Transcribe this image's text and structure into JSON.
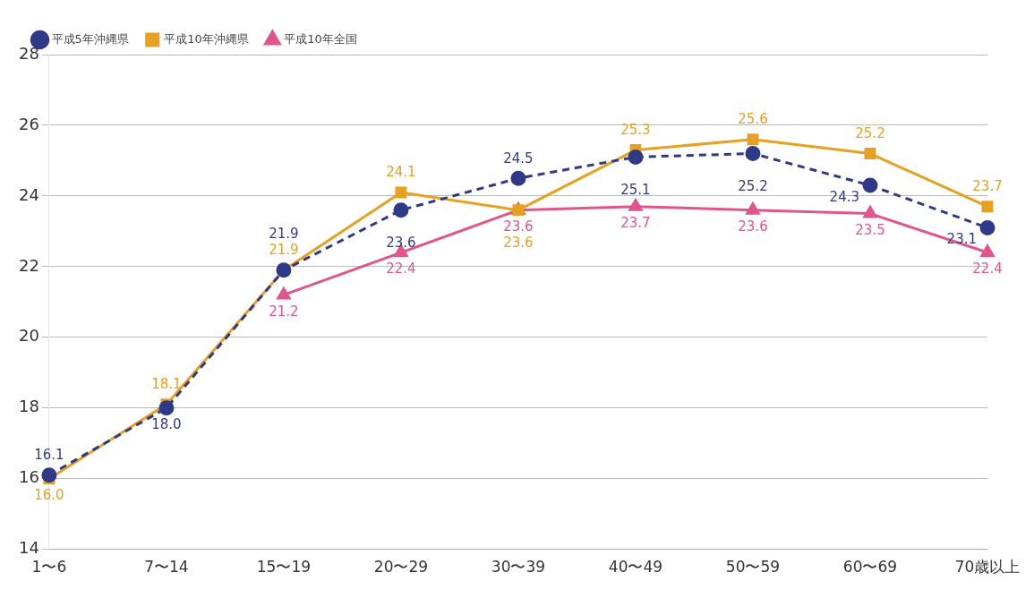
{
  "chart_data": {
    "type": "line",
    "categories": [
      "1〜6",
      "7〜14",
      "15〜19",
      "20〜29",
      "30〜39",
      "40〜49",
      "50〜59",
      "60〜69",
      "70歳以上"
    ],
    "series": [
      {
        "name": "平成5年沖縄県",
        "color": "#2e3a87",
        "marker": "circle",
        "line_style": "dashed",
        "values": [
          16.1,
          18.0,
          21.9,
          23.6,
          24.5,
          25.1,
          25.2,
          24.3,
          23.1
        ],
        "value_labels": [
          "16.1",
          "18.0",
          "21.9",
          "23.6",
          "24.5",
          "25.1",
          "25.2",
          "24.3",
          "23.1"
        ]
      },
      {
        "name": "平成10年沖縄県",
        "color": "#e8a020",
        "marker": "square",
        "line_style": "solid",
        "values": [
          16.0,
          18.1,
          21.9,
          24.1,
          23.6,
          25.3,
          25.6,
          25.2,
          23.7
        ],
        "value_labels": [
          "16.0",
          "18.1",
          "21.9",
          "24.1",
          "23.6",
          "25.3",
          "25.6",
          "25.2",
          "23.7"
        ]
      },
      {
        "name": "平成10年全国",
        "color": "#e0558a",
        "marker": "triangle",
        "line_style": "solid",
        "values": [
          null,
          null,
          21.2,
          22.4,
          23.6,
          23.7,
          23.6,
          23.5,
          22.4
        ],
        "value_labels": [
          null,
          null,
          "21.2",
          "22.4",
          "23.6",
          "23.7",
          "23.6",
          "23.5",
          "22.4"
        ]
      }
    ],
    "ylim": [
      14,
      28
    ],
    "yticks": [
      14,
      16,
      18,
      20,
      22,
      24,
      26,
      28
    ],
    "grid": "y",
    "legend": "top left"
  }
}
